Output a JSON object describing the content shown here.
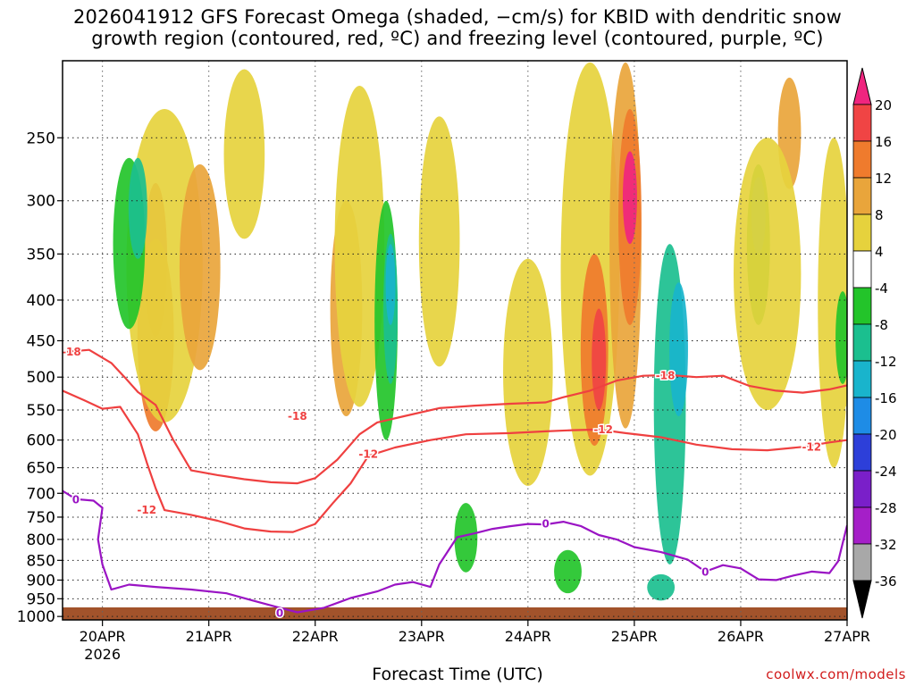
{
  "title_line1": "2026041912 GFS Forecast Omega (shaded, −cm/s) for KBID with dendritic snow",
  "title_line2": "growth region (contoured, red, ºC) and freezing level (contoured, purple, ºC)",
  "credit": "coolwx.com/models",
  "chart_data": {
    "type": "heatmap",
    "title": "2026041912 GFS Forecast Omega (shaded, −cm/s) for KBID with dendritic snow growth region (contoured, red, ºC) and freezing level (contoured, purple, ºC)",
    "xlabel": "Forecast Time (UTC)",
    "ylabel": "",
    "x_ticks": [
      "20APR",
      "21APR",
      "22APR",
      "23APR",
      "24APR",
      "25APR",
      "26APR",
      "27APR"
    ],
    "x_year_label": "2026",
    "xlim_hours": [
      -9,
      168
    ],
    "y_ticks": [
      250,
      300,
      350,
      400,
      450,
      500,
      550,
      600,
      650,
      700,
      750,
      800,
      850,
      900,
      950,
      1000
    ],
    "ylim_hPa": [
      200,
      1010
    ],
    "colorbar": {
      "labels": [
        "20",
        "16",
        "12",
        "8",
        "4",
        "-4",
        "-8",
        "-12",
        "-16",
        "-20",
        "-24",
        "-28",
        "-32",
        "-36"
      ],
      "colors": [
        "#f0257f",
        "#f04444",
        "#ef7b2d",
        "#e9a53b",
        "#e6d23d",
        "#ffffff",
        "#23c42a",
        "#1bbf8f",
        "#19b4cc",
        "#1e8ce6",
        "#2d3fd9",
        "#7a1fc9",
        "#a51fc8",
        "#a8a8a8",
        "#000000"
      ]
    },
    "contours": [
      {
        "name": "-18",
        "color": "#ef4040",
        "label_positions": [
          [
            -7,
            465
          ],
          [
            44,
            560
          ],
          [
            127,
            498
          ],
          [
            170,
            547
          ]
        ],
        "points": [
          [
            -9,
            465
          ],
          [
            -3,
            462
          ],
          [
            2,
            480
          ],
          [
            5,
            500
          ],
          [
            8,
            522
          ],
          [
            12,
            542
          ],
          [
            16,
            600
          ],
          [
            20,
            655
          ],
          [
            26,
            664
          ],
          [
            32,
            672
          ],
          [
            38,
            678
          ],
          [
            44,
            680
          ],
          [
            48,
            670
          ],
          [
            53,
            635
          ],
          [
            58,
            590
          ],
          [
            62,
            570
          ],
          [
            68,
            560
          ],
          [
            76,
            547
          ],
          [
            84,
            543
          ],
          [
            92,
            540
          ],
          [
            100,
            538
          ],
          [
            104,
            530
          ],
          [
            110,
            520
          ],
          [
            116,
            505
          ],
          [
            122,
            498
          ],
          [
            128,
            497
          ],
          [
            134,
            500
          ],
          [
            140,
            498
          ],
          [
            146,
            513
          ],
          [
            152,
            520
          ],
          [
            158,
            523
          ],
          [
            164,
            518
          ],
          [
            168,
            512
          ]
        ]
      },
      {
        "name": "-12",
        "color": "#ef4040",
        "label_positions": [
          [
            10,
            735
          ],
          [
            60,
            625
          ],
          [
            113,
            582
          ],
          [
            160,
            612
          ]
        ],
        "points": [
          [
            -9,
            520
          ],
          [
            -4,
            535
          ],
          [
            0,
            548
          ],
          [
            4,
            545
          ],
          [
            8,
            590
          ],
          [
            10,
            640
          ],
          [
            12,
            690
          ],
          [
            14,
            735
          ],
          [
            20,
            745
          ],
          [
            26,
            758
          ],
          [
            32,
            775
          ],
          [
            38,
            782
          ],
          [
            43,
            783
          ],
          [
            48,
            765
          ],
          [
            52,
            720
          ],
          [
            56,
            680
          ],
          [
            60,
            628
          ],
          [
            66,
            613
          ],
          [
            74,
            600
          ],
          [
            82,
            590
          ],
          [
            92,
            588
          ],
          [
            100,
            585
          ],
          [
            106,
            583
          ],
          [
            112,
            582
          ],
          [
            118,
            588
          ],
          [
            126,
            595
          ],
          [
            134,
            608
          ],
          [
            142,
            616
          ],
          [
            150,
            618
          ],
          [
            158,
            612
          ],
          [
            164,
            604
          ],
          [
            168,
            600
          ]
        ]
      },
      {
        "name": "0",
        "color": "#9a14c4",
        "label_positions": [
          [
            -6,
            713
          ],
          [
            40,
            990
          ],
          [
            100,
            765
          ],
          [
            136,
            880
          ]
        ],
        "points": [
          [
            -9,
            695
          ],
          [
            -6,
            712
          ],
          [
            -2,
            715
          ],
          [
            0,
            730
          ],
          [
            -1,
            800
          ],
          [
            0,
            860
          ],
          [
            2,
            925
          ],
          [
            6,
            912
          ],
          [
            12,
            918
          ],
          [
            20,
            925
          ],
          [
            28,
            935
          ],
          [
            34,
            955
          ],
          [
            40,
            975
          ],
          [
            44,
            988
          ],
          [
            50,
            975
          ],
          [
            56,
            948
          ],
          [
            62,
            930
          ],
          [
            66,
            912
          ],
          [
            70,
            905
          ],
          [
            74,
            918
          ],
          [
            76,
            860
          ],
          [
            80,
            795
          ],
          [
            84,
            786
          ],
          [
            88,
            776
          ],
          [
            92,
            770
          ],
          [
            96,
            765
          ],
          [
            100,
            766
          ],
          [
            104,
            760
          ],
          [
            108,
            770
          ],
          [
            112,
            790
          ],
          [
            116,
            800
          ],
          [
            120,
            818
          ],
          [
            126,
            830
          ],
          [
            132,
            848
          ],
          [
            136,
            878
          ],
          [
            140,
            862
          ],
          [
            144,
            870
          ],
          [
            148,
            898
          ],
          [
            152,
            900
          ],
          [
            156,
            888
          ],
          [
            160,
            878
          ],
          [
            164,
            882
          ],
          [
            166,
            852
          ],
          [
            168,
            768
          ]
        ]
      }
    ],
    "blobs": [
      {
        "value": 16,
        "cx": 12,
        "p": 365,
        "w": 4,
        "h": 160
      },
      {
        "value": 12,
        "cx": 12,
        "p": 460,
        "w": 7,
        "h": 250
      },
      {
        "value": 4,
        "cx": 14,
        "p": 400,
        "w": 16,
        "h": 340
      },
      {
        "value": 8,
        "cx": 22,
        "p": 380,
        "w": 8,
        "h": 220
      },
      {
        "value": 4,
        "cx": 32,
        "p": 270,
        "w": 8,
        "h": 130
      },
      {
        "value": -8,
        "cx": 6,
        "p": 350,
        "w": 6,
        "h": 170
      },
      {
        "value": -12,
        "cx": 8,
        "p": 310,
        "w": 3,
        "h": 90
      },
      {
        "value": 8,
        "cx": 55,
        "p": 430,
        "w": 6,
        "h": 260
      },
      {
        "value": 4,
        "cx": 58,
        "p": 380,
        "w": 10,
        "h": 330
      },
      {
        "value": -8,
        "cx": 64,
        "p": 450,
        "w": 4,
        "h": 300
      },
      {
        "value": -12,
        "cx": 65,
        "p": 420,
        "w": 2,
        "h": 180
      },
      {
        "value": -16,
        "cx": 65,
        "p": 385,
        "w": 1,
        "h": 90
      },
      {
        "value": 4,
        "cx": 76,
        "p": 360,
        "w": 8,
        "h": 250
      },
      {
        "value": -8,
        "cx": 82,
        "p": 800,
        "w": 4,
        "h": 160
      },
      {
        "value": 4,
        "cx": 96,
        "p": 520,
        "w": 10,
        "h": 330
      },
      {
        "value": 4,
        "cx": 110,
        "p": 430,
        "w": 12,
        "h": 470
      },
      {
        "value": 12,
        "cx": 111,
        "p": 480,
        "w": 5,
        "h": 260
      },
      {
        "value": 16,
        "cx": 112,
        "p": 480,
        "w": 2,
        "h": 140
      },
      {
        "value": 8,
        "cx": 118,
        "p": 390,
        "w": 6,
        "h": 380
      },
      {
        "value": 12,
        "cx": 119,
        "p": 330,
        "w": 4,
        "h": 200
      },
      {
        "value": 20,
        "cx": 119,
        "p": 300,
        "w": 2,
        "h": 80
      },
      {
        "value": -8,
        "cx": 105,
        "p": 880,
        "w": 5,
        "h": 110
      },
      {
        "value": -12,
        "cx": 128,
        "p": 600,
        "w": 6,
        "h": 520
      },
      {
        "value": -16,
        "cx": 130,
        "p": 470,
        "w": 3,
        "h": 180
      },
      {
        "value": -12,
        "cx": 126,
        "p": 920,
        "w": 5,
        "h": 70
      },
      {
        "value": -8,
        "cx": 148,
        "p": 350,
        "w": 4,
        "h": 160
      },
      {
        "value": -12,
        "cx": 148,
        "p": 315,
        "w": 2,
        "h": 70
      },
      {
        "value": 8,
        "cx": 155,
        "p": 250,
        "w": 4,
        "h": 80
      },
      {
        "value": 4,
        "cx": 150,
        "p": 400,
        "w": 14,
        "h": 300
      },
      {
        "value": 4,
        "cx": 165,
        "p": 450,
        "w": 6,
        "h": 400
      },
      {
        "value": -8,
        "cx": 167,
        "p": 450,
        "w": 2,
        "h": 120
      }
    ]
  }
}
